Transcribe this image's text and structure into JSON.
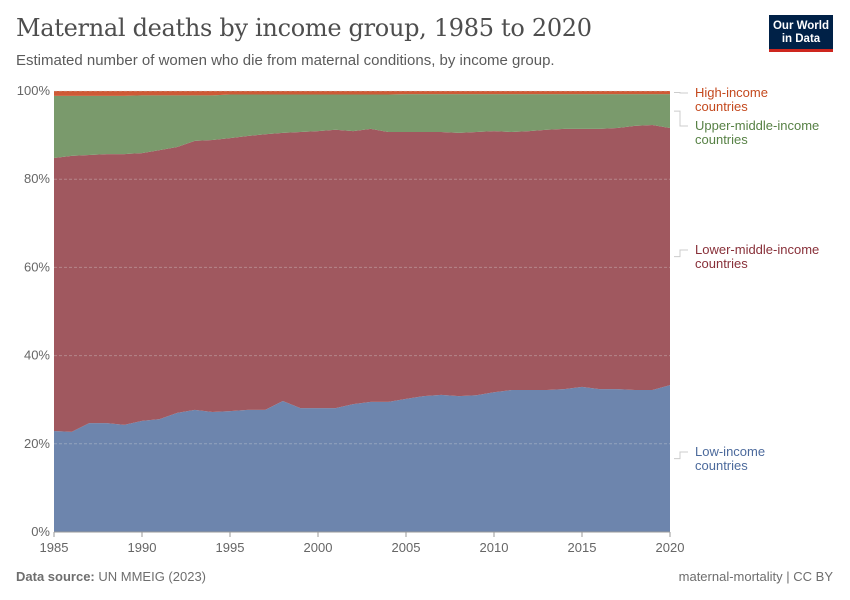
{
  "header": {
    "title": "Maternal deaths by income group, 1985 to 2020",
    "subtitle": "Estimated number of women who die from maternal conditions, by income group."
  },
  "logo": {
    "line1": "Our World",
    "line2": "in Data"
  },
  "footer": {
    "source_label": "Data source:",
    "source": "UN MMEIG (2023)",
    "license": "maternal-mortality | CC BY"
  },
  "chart_data": {
    "type": "area",
    "stacked": true,
    "relative": true,
    "title": "Maternal deaths by income group, 1985 to 2020",
    "x": [
      1985,
      1986,
      1987,
      1988,
      1989,
      1990,
      1991,
      1992,
      1993,
      1994,
      1995,
      1996,
      1997,
      1998,
      1999,
      2000,
      2001,
      2002,
      2003,
      2004,
      2005,
      2006,
      2007,
      2008,
      2009,
      2010,
      2011,
      2012,
      2013,
      2014,
      2015,
      2016,
      2017,
      2018,
      2019,
      2020
    ],
    "xticks": [
      "1985",
      "1990",
      "1995",
      "2000",
      "2005",
      "2010",
      "2015",
      "2020"
    ],
    "yticks": [
      "0%",
      "20%",
      "40%",
      "60%",
      "80%",
      "100%"
    ],
    "ylim": [
      0,
      100
    ],
    "grid": "horizontal dashed",
    "legend": "right (inline labels)",
    "series": [
      {
        "name": "Low-income countries",
        "color": "#6d85ad",
        "label_color": "#4c6a9c",
        "values": [
          22.9,
          22.7,
          24.7,
          24.7,
          24.3,
          25.2,
          25.6,
          27.0,
          27.7,
          27.2,
          27.4,
          27.7,
          27.7,
          29.7,
          28.1,
          28.1,
          28.1,
          29.0,
          29.5,
          29.5,
          30.2,
          30.8,
          31.1,
          30.8,
          31.0,
          31.7,
          32.2,
          32.2,
          32.2,
          32.4,
          32.9,
          32.4,
          32.4,
          32.2,
          32.2,
          33.3
        ]
      },
      {
        "name": "Lower-middle-income countries",
        "color": "#a0585f",
        "label_color": "#883039",
        "values": [
          61.9,
          62.6,
          60.8,
          61.0,
          61.4,
          60.7,
          61.0,
          60.3,
          61.0,
          61.7,
          61.9,
          62.1,
          62.5,
          60.8,
          62.6,
          62.8,
          63.1,
          61.9,
          61.9,
          61.2,
          60.5,
          59.9,
          59.6,
          59.7,
          59.7,
          59.2,
          58.5,
          58.7,
          59.0,
          59.0,
          58.5,
          59.0,
          59.2,
          59.9,
          60.1,
          58.3
        ]
      },
      {
        "name": "Upper-middle-income countries",
        "color": "#7a9a6c",
        "label_color": "#578145",
        "values": [
          14.1,
          13.6,
          13.4,
          13.2,
          13.2,
          13.1,
          12.4,
          11.7,
          10.3,
          10.1,
          9.9,
          9.4,
          9.0,
          8.7,
          8.5,
          8.3,
          8.0,
          8.3,
          7.8,
          8.5,
          8.6,
          8.6,
          8.6,
          8.8,
          8.6,
          8.4,
          8.6,
          8.4,
          8.1,
          7.9,
          7.9,
          7.9,
          7.7,
          7.2,
          7.0,
          7.7
        ]
      },
      {
        "name": "High-income countries",
        "color": "#ce5a36",
        "label_color": "#c4491e",
        "values": [
          1.1,
          1.1,
          1.1,
          1.1,
          1.1,
          1.0,
          1.0,
          1.0,
          1.0,
          1.0,
          0.8,
          0.8,
          0.8,
          0.8,
          0.8,
          0.8,
          0.8,
          0.8,
          0.8,
          0.8,
          0.7,
          0.7,
          0.7,
          0.7,
          0.7,
          0.7,
          0.7,
          0.7,
          0.7,
          0.7,
          0.7,
          0.7,
          0.7,
          0.7,
          0.7,
          0.7
        ]
      }
    ],
    "legend_labels": [
      [
        "Low-income",
        "countries"
      ],
      [
        "Lower-middle-income",
        "countries"
      ],
      [
        "Upper-middle-income",
        "countries"
      ],
      [
        "High-income",
        "countries"
      ]
    ]
  }
}
